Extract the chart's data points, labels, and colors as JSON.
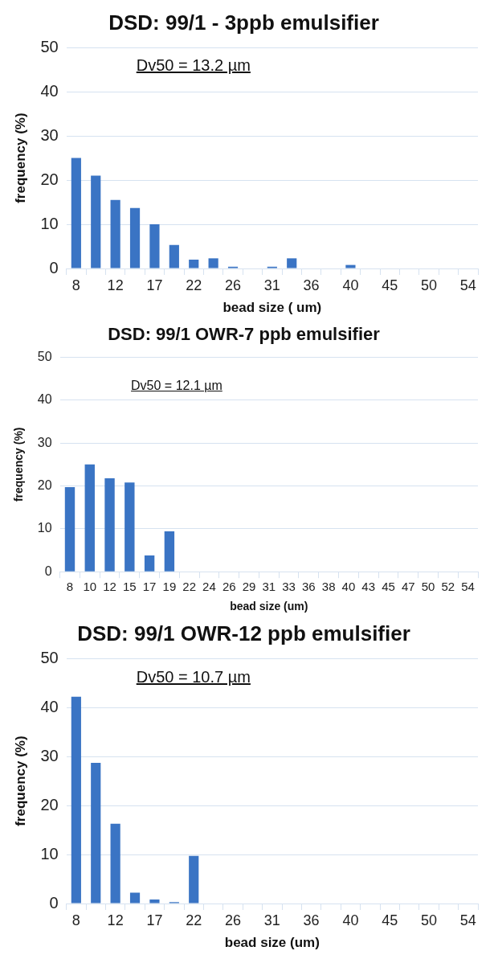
{
  "chart_data": [
    {
      "type": "bar",
      "title": "DSD: 99/1 - 3ppb emulsifier",
      "xlabel": "bead size ( um)",
      "ylabel": "frequency (%)",
      "annotations": [
        "Dv50 = 13.2 µm"
      ],
      "categories": [
        "8",
        null,
        "12",
        null,
        "17",
        null,
        "22",
        null,
        "26",
        null,
        "31",
        null,
        "36",
        null,
        "40",
        null,
        "45",
        null,
        "50",
        null,
        "54"
      ],
      "values": [
        25,
        21,
        15.5,
        13.7,
        10,
        5.3,
        2,
        2.3,
        0.4,
        0,
        0.4,
        2.3,
        0,
        0,
        0.8,
        0,
        0,
        0,
        0,
        0,
        0
      ],
      "color": "#3a74c4",
      "ylim": [
        0,
        50
      ],
      "yticks": [
        0,
        10,
        20,
        30,
        40,
        50
      ],
      "grid": "y"
    },
    {
      "type": "bar",
      "title": "DSD: 99/1 OWR-7 ppb emulsifier",
      "xlabel": "bead size (um)",
      "ylabel": "frequency (%)",
      "annotations": [
        "Dv50 = 12.1 µm"
      ],
      "categories": [
        "8",
        "10",
        "12",
        "15",
        "17",
        "19",
        "22",
        "24",
        "26",
        "29",
        "31",
        "33",
        "36",
        "38",
        "40",
        "43",
        "45",
        "47",
        "50",
        "52",
        "54"
      ],
      "values": [
        19.7,
        25,
        21.8,
        20.8,
        3.8,
        9.4,
        0,
        0,
        0,
        0,
        0,
        0,
        0,
        0,
        0,
        0,
        0,
        0,
        0,
        0,
        0
      ],
      "color": "#3a74c4",
      "ylim": [
        0,
        50
      ],
      "yticks": [
        0,
        10,
        20,
        30,
        40,
        50
      ],
      "grid": "y"
    },
    {
      "type": "bar",
      "title": "DSD: 99/1 OWR-12 ppb emulsifier",
      "xlabel": "bead size (um)",
      "ylabel": "frequency (%)",
      "annotations": [
        "Dv50 = 10.7 µm"
      ],
      "categories": [
        "8",
        null,
        "12",
        null,
        "17",
        null,
        "22",
        null,
        "26",
        null,
        "31",
        null,
        "36",
        null,
        "40",
        null,
        "45",
        null,
        "50",
        null,
        "54"
      ],
      "values": [
        42.2,
        28.7,
        16.3,
        2.2,
        0.8,
        0.3,
        9.7,
        0,
        0,
        0,
        0,
        0,
        0,
        0,
        0,
        0,
        0,
        0,
        0,
        0,
        0
      ],
      "color": "#3a74c4",
      "ylim": [
        0,
        50
      ],
      "yticks": [
        0,
        10,
        20,
        30,
        40,
        50
      ],
      "grid": "y"
    }
  ]
}
